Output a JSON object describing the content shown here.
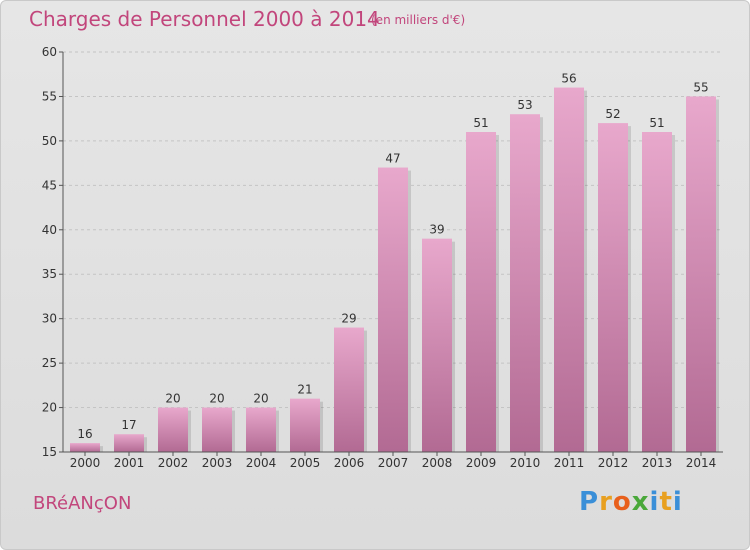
{
  "header": {
    "title": "Charges de Personnel 2000 à 2014",
    "subtitle": "(en milliers d'€)"
  },
  "footer": {
    "commune": "BRéANçON",
    "logo_letters": [
      "P",
      "r",
      "o",
      "x",
      "i",
      "t",
      "i"
    ],
    "logo_colors": [
      "#3a8fd8",
      "#e8a020",
      "#e8601c",
      "#4aa83a",
      "#3a8fd8",
      "#e8a020",
      "#3a8fd8"
    ]
  },
  "colors": {
    "bar_light": "#e8a8cc",
    "bar_dark": "#b26a93",
    "accent": "#c2467c"
  },
  "chart_data": {
    "type": "bar",
    "categories": [
      "2000",
      "2001",
      "2002",
      "2003",
      "2004",
      "2005",
      "2006",
      "2007",
      "2008",
      "2009",
      "2010",
      "2011",
      "2012",
      "2013",
      "2014"
    ],
    "values": [
      16,
      17,
      20,
      20,
      20,
      21,
      29,
      47,
      39,
      51,
      53,
      56,
      52,
      51,
      55
    ],
    "title": "Charges de Personnel 2000 à 2014",
    "subtitle": "(en milliers d'€)",
    "xlabel": "",
    "ylabel": "",
    "ylim": [
      15,
      60
    ],
    "yticks": [
      15,
      20,
      25,
      30,
      35,
      40,
      45,
      50,
      55,
      60
    ],
    "grid": true,
    "legend": "none"
  }
}
